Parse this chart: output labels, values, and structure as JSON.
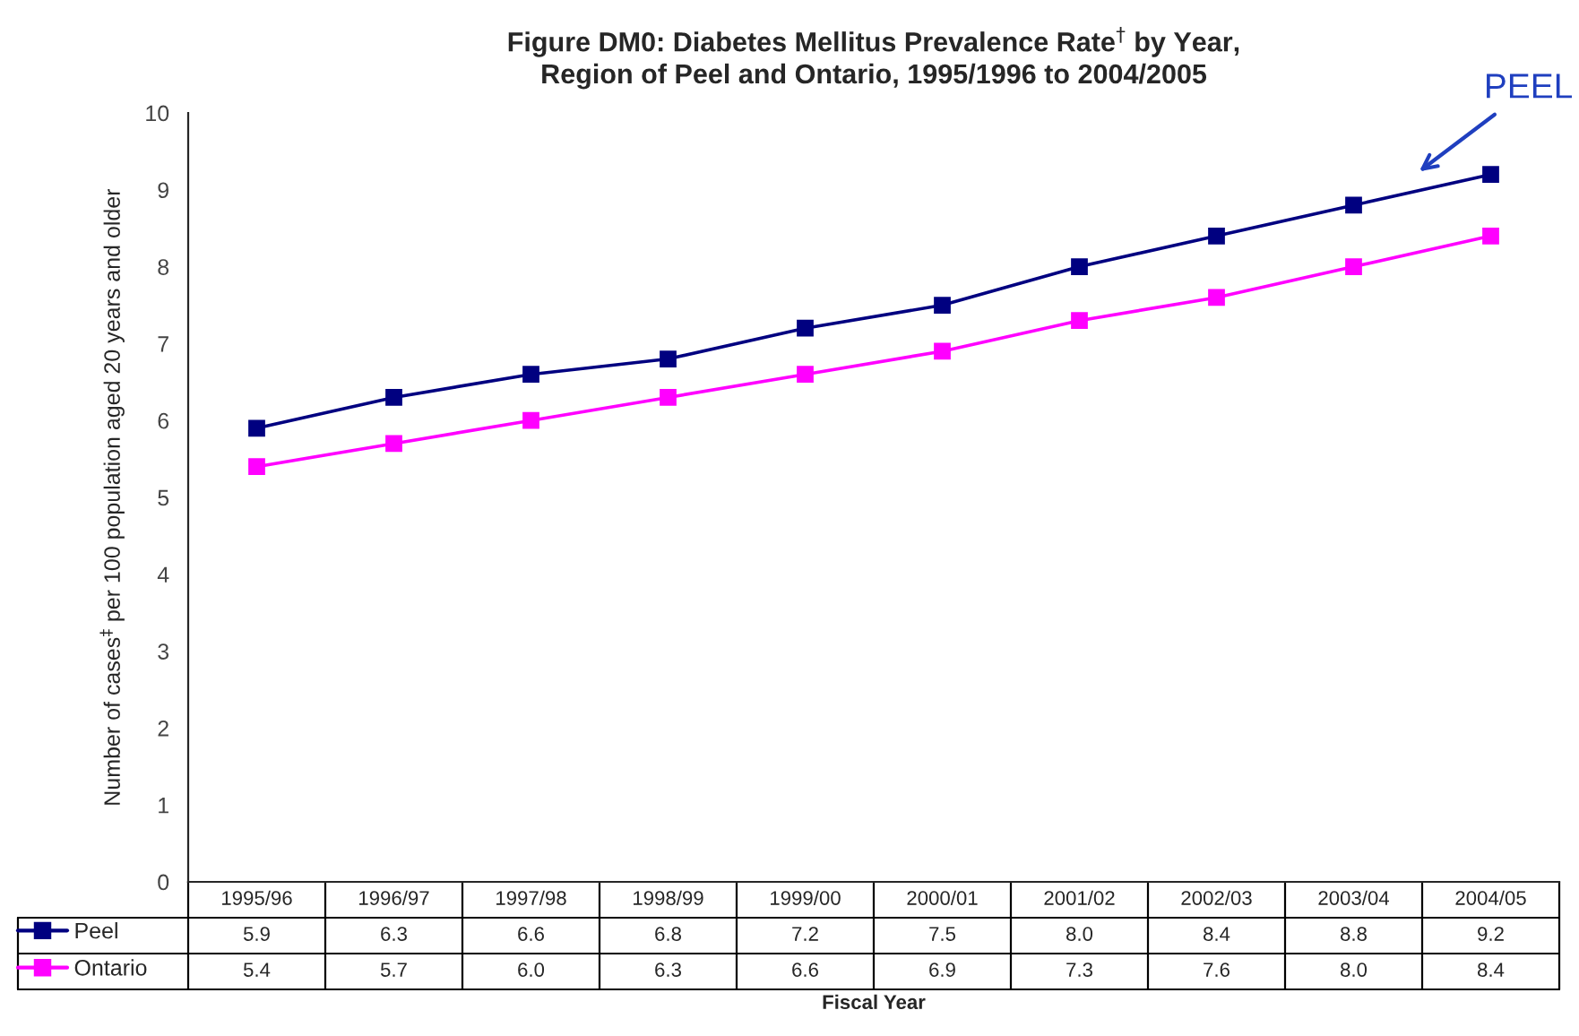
{
  "chart_data": {
    "type": "line",
    "title": "Figure DM0: Diabetes Mellitus Prevalence Rate$^{†}$ by Year,\nRegion of Peel and Ontario, 1995/1996 to 2004/2005",
    "xlabel": "Fiscal Year",
    "ylabel": "Number of cases$^{‡}$ per 100 population aged 20 years and older",
    "categories": [
      "1995/96",
      "1996/97",
      "1997/98",
      "1998/99",
      "1999/00",
      "2000/01",
      "2001/02",
      "2002/03",
      "2003/04",
      "2004/05"
    ],
    "series": [
      {
        "name": "Peel",
        "color": "#000080",
        "values": [
          5.9,
          6.3,
          6.6,
          6.8,
          7.2,
          7.5,
          8.0,
          8.4,
          8.8,
          9.2
        ],
        "value_labels": [
          "5.9",
          "6.3",
          "6.6",
          "6.8",
          "7.2",
          "7.5",
          "8.0",
          "8.4",
          "8.8",
          "9.2"
        ]
      },
      {
        "name": "Ontario",
        "color": "#ff00ff",
        "values": [
          5.4,
          5.7,
          6.0,
          6.3,
          6.6,
          6.9,
          7.3,
          7.6,
          8.0,
          8.4
        ],
        "value_labels": [
          "5.4",
          "5.7",
          "6.0",
          "6.3",
          "6.6",
          "6.9",
          "7.3",
          "7.6",
          "8.0",
          "8.4"
        ]
      }
    ],
    "ylim": [
      0,
      10
    ],
    "yticks": [
      0,
      1,
      2,
      3,
      4,
      5,
      6,
      7,
      8,
      9,
      10
    ],
    "marker": "square",
    "line_style": "solid",
    "grid": false,
    "legend": "bottom left",
    "annotations": [
      {
        "text": "PEEL",
        "x": "2004/05",
        "y": 9.2
      }
    ]
  }
}
